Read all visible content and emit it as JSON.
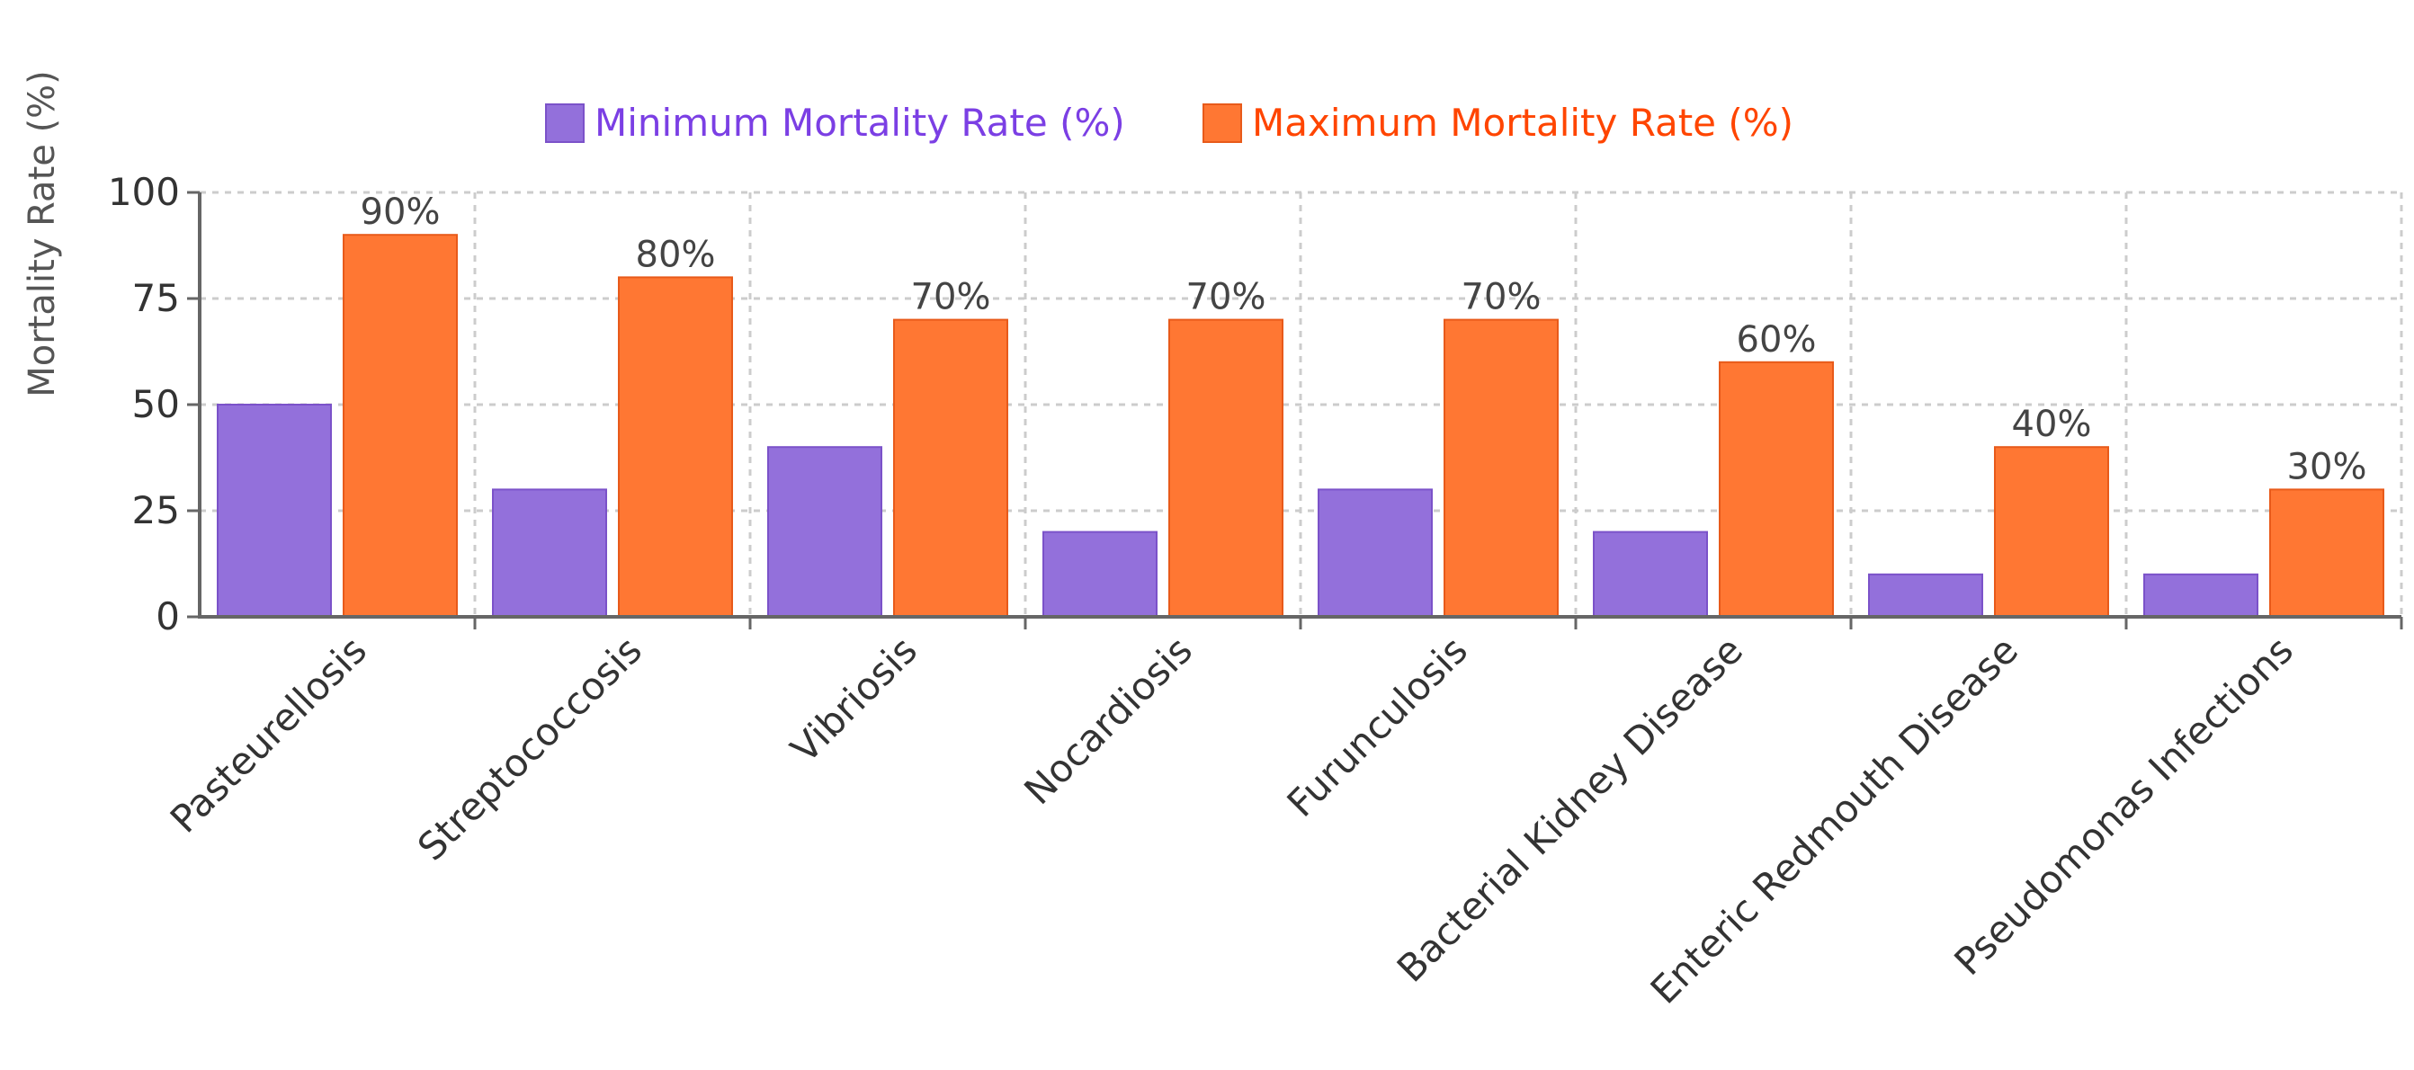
{
  "chart_data": {
    "type": "bar",
    "title": "",
    "xlabel": "",
    "ylabel": "Mortality Rate (%)",
    "ylim": [
      0,
      100
    ],
    "yticks": [
      0,
      25,
      50,
      75,
      100
    ],
    "grid": true,
    "legend_position": "top-center",
    "categories": [
      "Pasteurellosis",
      "Streptococcosis",
      "Vibriosis",
      "Nocardiosis",
      "Furunculosis",
      "Bacterial Kidney Disease",
      "Enteric Redmouth Disease",
      "Pseudomonas Infections"
    ],
    "series": [
      {
        "name": "Minimum Mortality Rate (%)",
        "color": "#9370DB",
        "values": [
          50,
          30,
          40,
          20,
          30,
          20,
          10,
          10
        ],
        "show_labels": false
      },
      {
        "name": "Maximum Mortality Rate (%)",
        "color": "#FF7733",
        "values": [
          90,
          80,
          70,
          70,
          70,
          60,
          40,
          30
        ],
        "show_labels": true,
        "label_suffix": "%"
      }
    ]
  },
  "colors": {
    "axis": "#666666",
    "grid": "#cccccc",
    "tick_text": "#333333",
    "legend_min_text": "#7B3FE4",
    "legend_max_text": "#FF4500",
    "bar_min_fill": "#9370DB",
    "bar_max_fill": "#FF7733"
  }
}
